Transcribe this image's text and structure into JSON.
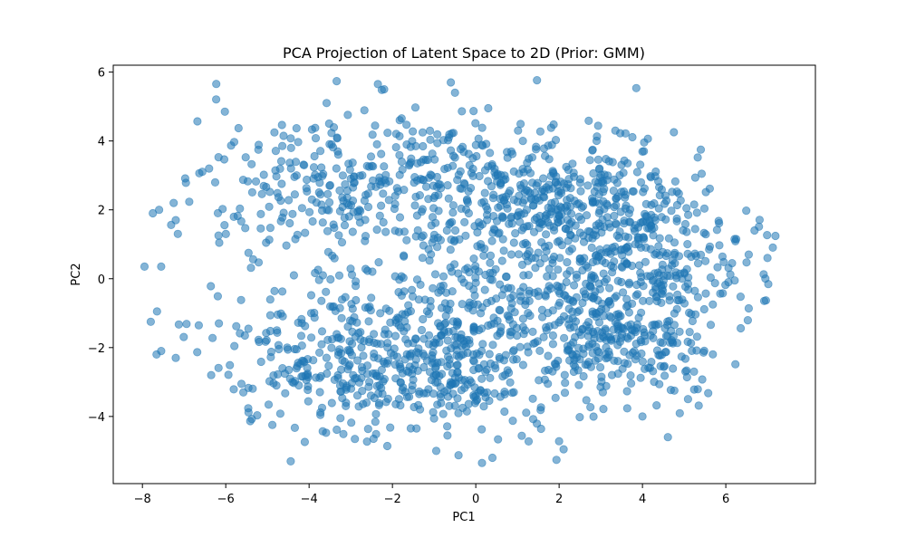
{
  "chart_data": {
    "type": "scatter",
    "title": "PCA Projection of Latent Space to 2D (Prior: GMM)",
    "xlabel": "PC1",
    "ylabel": "PC2",
    "xlim": [
      -8.7,
      8.15
    ],
    "ylim": [
      -5.95,
      6.2
    ],
    "xticks": [
      -8,
      -6,
      -4,
      -2,
      0,
      2,
      4,
      6
    ],
    "yticks": [
      -4,
      -2,
      0,
      2,
      4,
      6
    ],
    "xtick_labels": [
      "−8",
      "−6",
      "−4",
      "−2",
      "0",
      "2",
      "4",
      "6"
    ],
    "ytick_labels": [
      "−4",
      "−2",
      "0",
      "2",
      "4",
      "6"
    ],
    "grid": false,
    "marker_color": "#1f77b4",
    "marker_alpha": 0.55,
    "point_count_approx": 2000,
    "clusters": [
      {
        "cx": -3.3,
        "cy": 2.4,
        "sx": 1.7,
        "sy": 1.25,
        "n": 260
      },
      {
        "cx": -3.3,
        "cy": -2.3,
        "sx": 1.7,
        "sy": 1.2,
        "n": 240
      },
      {
        "cx": 0.3,
        "cy": 2.6,
        "sx": 1.6,
        "sy": 1.0,
        "n": 260
      },
      {
        "cx": -0.9,
        "cy": -2.4,
        "sx": 1.4,
        "sy": 1.0,
        "n": 300
      },
      {
        "cx": 2.8,
        "cy": 1.9,
        "sx": 1.3,
        "sy": 1.1,
        "n": 330
      },
      {
        "cx": 3.3,
        "cy": -1.8,
        "sx": 1.3,
        "sy": 1.1,
        "n": 300
      },
      {
        "cx": 0.5,
        "cy": -0.4,
        "sx": 1.5,
        "sy": 1.0,
        "n": 160
      },
      {
        "cx": 4.5,
        "cy": 0.2,
        "sx": 1.2,
        "sy": 0.9,
        "n": 150
      }
    ],
    "notable_points": [
      {
        "x": -7.95,
        "y": 0.35
      },
      {
        "x": -7.75,
        "y": 1.9
      },
      {
        "x": -7.6,
        "y": 2.0
      },
      {
        "x": -7.25,
        "y": 2.2
      },
      {
        "x": -7.2,
        "y": 1.7
      },
      {
        "x": -7.15,
        "y": 1.3
      },
      {
        "x": -7.55,
        "y": 0.35
      },
      {
        "x": -7.8,
        "y": -1.25
      },
      {
        "x": -7.65,
        "y": -0.95
      },
      {
        "x": -7.55,
        "y": -2.1
      },
      {
        "x": -7.2,
        "y": -2.3
      },
      {
        "x": -6.4,
        "y": 3.2
      },
      {
        "x": -6.35,
        "y": -2.8
      },
      {
        "x": -2.35,
        "y": 5.65
      },
      {
        "x": -2.2,
        "y": 5.5
      },
      {
        "x": -0.6,
        "y": 5.7
      },
      {
        "x": -0.5,
        "y": 5.4
      },
      {
        "x": 0.3,
        "y": 4.95
      },
      {
        "x": 0.15,
        "y": -5.35
      },
      {
        "x": 0.4,
        "y": -5.2
      },
      {
        "x": -0.95,
        "y": -5.0
      },
      {
        "x": 3.35,
        "y": 4.3
      },
      {
        "x": 6.15,
        "y": 0.45
      },
      {
        "x": 6.55,
        "y": 0.7
      },
      {
        "x": 7.0,
        "y": 0.6
      },
      {
        "x": 6.25,
        "y": 1.15
      },
      {
        "x": 5.4,
        "y": 3.75
      },
      {
        "x": 4.0,
        "y": -4.0
      }
    ]
  }
}
